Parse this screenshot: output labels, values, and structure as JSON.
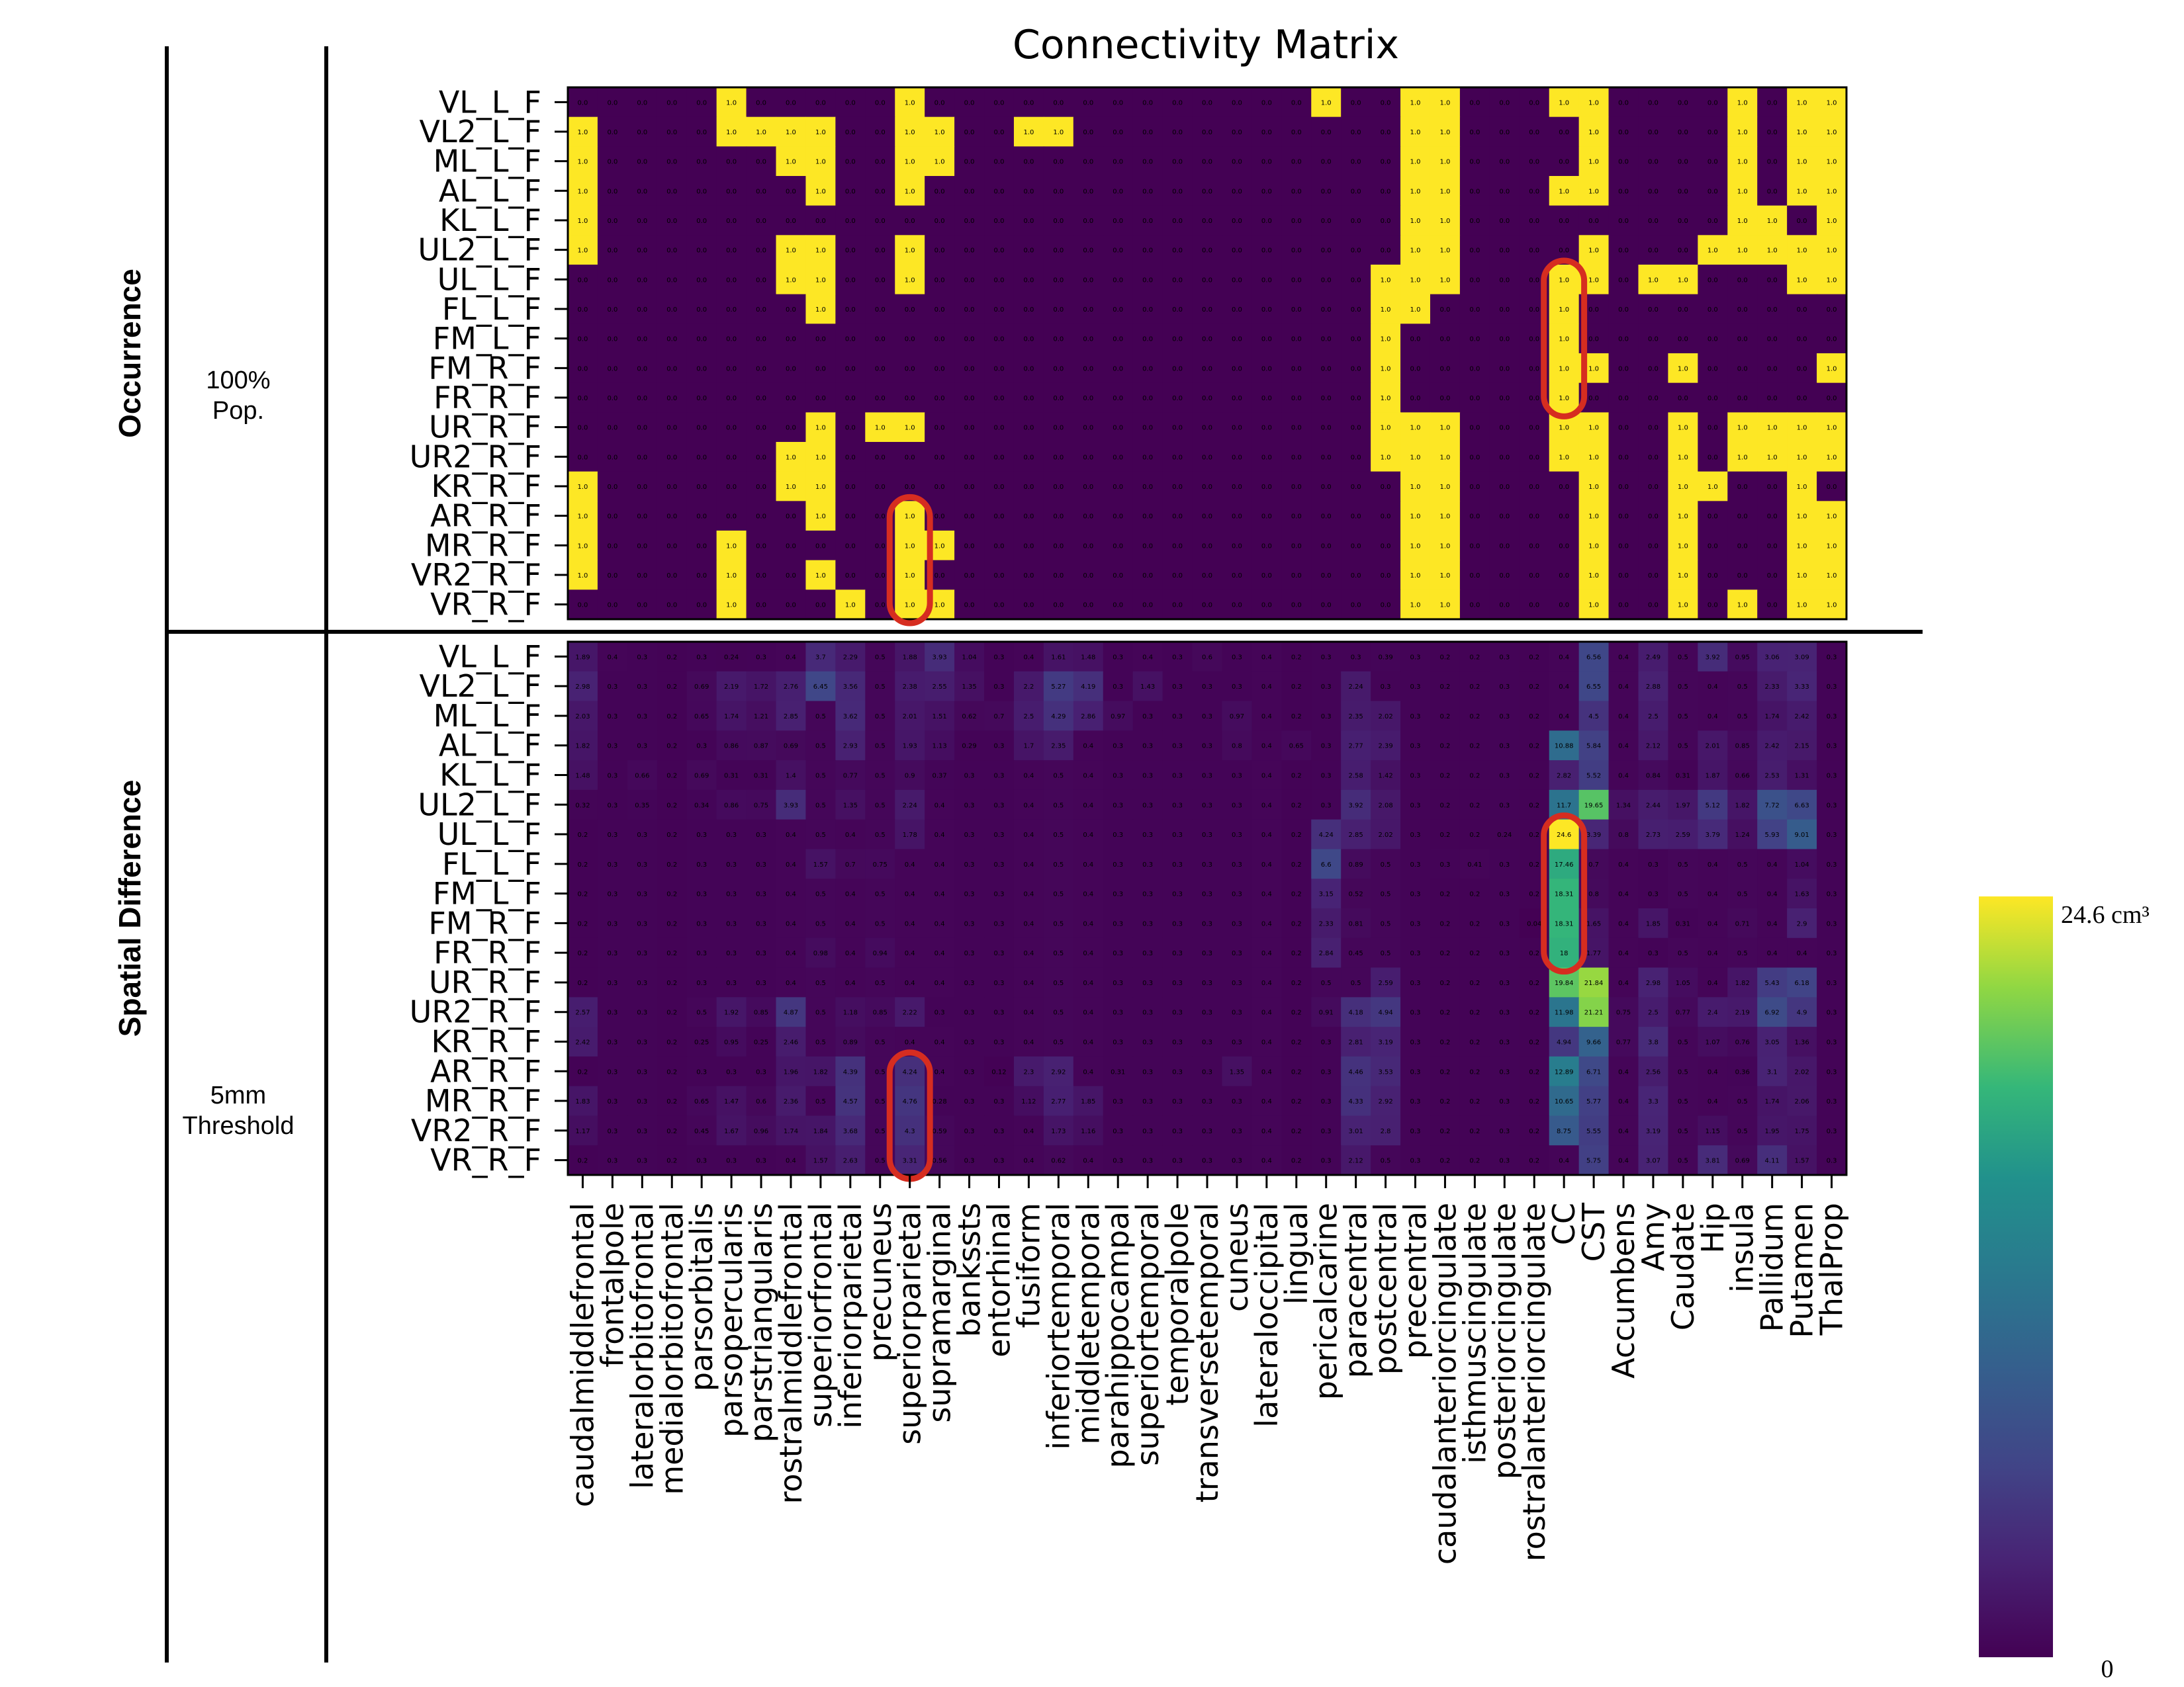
{
  "colors": {
    "viridis_low": "#440154",
    "viridis_high": "#fde725",
    "highlight": "#d62d20",
    "divider": "#000000"
  },
  "chart_data": {
    "type": "heatmap",
    "title": "Connectivity Matrix",
    "rows": [
      "VL_L_F",
      "VL2_L_F",
      "ML_L_F",
      "AL_L_F",
      "KL_L_F",
      "UL2_L_F",
      "UL_L_F",
      "FL_L_F",
      "FM_L_F",
      "FM_R_F",
      "FR_R_F",
      "UR_R_F",
      "UR2_R_F",
      "KR_R_F",
      "AR_R_F",
      "MR_R_F",
      "VR2_R_F",
      "VR_R_F"
    ],
    "columns": [
      "caudalmiddlefrontal",
      "frontalpole",
      "lateralorbitofrontal",
      "medialorbitofrontal",
      "parsorbitalis",
      "parsopercularis",
      "parstriangularis",
      "rostralmiddlefrontal",
      "superiorfrontal",
      "inferiorparietal",
      "precuneus",
      "superiorparietal",
      "supramarginal",
      "bankssts",
      "entorhinal",
      "fusiform",
      "inferiortemporal",
      "middletemporal",
      "parahippocampal",
      "superiortemporal",
      "temporalpole",
      "transversetemporal",
      "cuneus",
      "lateraloccipital",
      "lingual",
      "pericalcarine",
      "paracentral",
      "postcentral",
      "precentral",
      "caudalanteriorcingulate",
      "isthmuscingulate",
      "posteriorcingulate",
      "rostralanteriorcingulate",
      "CC",
      "CST",
      "Accumbens",
      "Amy",
      "Caudate",
      "Hip",
      "insula",
      "Pallidum",
      "Putamen",
      "ThalProp"
    ],
    "panels": [
      {
        "name": "Occurrence",
        "sublabel": [
          "100%",
          "Pop."
        ],
        "scale": "binary",
        "cell_text_on": "1.0",
        "cell_text_off": "0.0",
        "active": [
          [
            5,
            11,
            25,
            28,
            29,
            33,
            34,
            39,
            41,
            42
          ],
          [
            0,
            5,
            6,
            7,
            8,
            11,
            12,
            15,
            16,
            28,
            29,
            34,
            39,
            41,
            42
          ],
          [
            0,
            7,
            8,
            11,
            12,
            28,
            29,
            34,
            39,
            41,
            42
          ],
          [
            0,
            8,
            11,
            28,
            29,
            33,
            34,
            39,
            41,
            42
          ],
          [
            0,
            28,
            29,
            39,
            40,
            42
          ],
          [
            0,
            7,
            8,
            11,
            28,
            29,
            34,
            38,
            39,
            40,
            41,
            42
          ],
          [
            7,
            8,
            11,
            27,
            28,
            29,
            33,
            34,
            36,
            37,
            41,
            42
          ],
          [
            8,
            27,
            28,
            33
          ],
          [
            27,
            33
          ],
          [
            27,
            33,
            34,
            37,
            42
          ],
          [
            27,
            33
          ],
          [
            8,
            10,
            11,
            27,
            28,
            29,
            33,
            34,
            37,
            39,
            40,
            41,
            42
          ],
          [
            7,
            8,
            27,
            28,
            29,
            33,
            34,
            37,
            39,
            40,
            41,
            42
          ],
          [
            0,
            7,
            8,
            28,
            29,
            34,
            37,
            38,
            41
          ],
          [
            0,
            8,
            11,
            28,
            29,
            34,
            37,
            41,
            42
          ],
          [
            0,
            5,
            11,
            12,
            28,
            29,
            34,
            37,
            41,
            42
          ],
          [
            0,
            5,
            8,
            11,
            28,
            29,
            34,
            37,
            41,
            42
          ],
          [
            5,
            9,
            11,
            12,
            28,
            29,
            34,
            37,
            39,
            41,
            42
          ]
        ],
        "highlights": [
          {
            "column": "CC",
            "rows": [
              "UL_L_F",
              "FR_R_F"
            ]
          },
          {
            "column": "superiorparietal",
            "rows": [
              "AR_R_F",
              "VR_R_F"
            ]
          }
        ]
      },
      {
        "name": "Spatial Difference",
        "sublabel": [
          "5mm",
          "Threshold"
        ],
        "scale": "continuous",
        "unit": "cm³",
        "vmin": 0,
        "vmax": 24.6,
        "values": [
          [
            1.89,
            0.4,
            0.3,
            0.2,
            0.3,
            0.24,
            0.3,
            0.4,
            3.7,
            2.29,
            0.5,
            1.88,
            3.93,
            1.04,
            0.3,
            0.4,
            1.61,
            1.48,
            0.3,
            0.4,
            0.3,
            0.6,
            0.3,
            0.4,
            0.2,
            0.3,
            0.3,
            0.39,
            0.3,
            0.2,
            0.2,
            0.3,
            0.2,
            0.4,
            6.56,
            0.4,
            2.49,
            0.5,
            3.92,
            0.95,
            3.06,
            3.09,
            0.3
          ],
          [
            2.98,
            0.3,
            0.3,
            0.2,
            0.69,
            2.19,
            1.72,
            2.76,
            6.45,
            3.56,
            0.5,
            2.38,
            2.55,
            1.35,
            0.3,
            2.2,
            5.27,
            4.19,
            0.3,
            1.43,
            0.3,
            0.3,
            0.3,
            0.4,
            0.2,
            0.3,
            2.24,
            0.3,
            0.3,
            0.2,
            0.2,
            0.3,
            0.2,
            0.4,
            6.55,
            0.4,
            2.88,
            0.5,
            0.4,
            0.5,
            2.33,
            3.33,
            0.3
          ],
          [
            2.03,
            0.3,
            0.3,
            0.2,
            0.65,
            1.74,
            1.21,
            2.85,
            0.5,
            3.62,
            0.5,
            2.01,
            1.51,
            0.62,
            0.7,
            2.5,
            4.29,
            2.86,
            0.97,
            0.3,
            0.3,
            0.3,
            0.97,
            0.4,
            0.2,
            0.3,
            2.35,
            2.02,
            0.3,
            0.2,
            0.2,
            0.3,
            0.2,
            0.4,
            4.5,
            0.4,
            2.5,
            0.5,
            0.4,
            0.5,
            1.74,
            2.42,
            0.3
          ],
          [
            1.82,
            0.3,
            0.3,
            0.2,
            0.3,
            0.86,
            0.87,
            0.69,
            0.5,
            2.93,
            0.5,
            1.93,
            1.13,
            0.29,
            0.3,
            1.7,
            2.35,
            0.4,
            0.3,
            0.3,
            0.3,
            0.3,
            0.8,
            0.4,
            0.65,
            0.3,
            2.77,
            2.39,
            0.3,
            0.2,
            0.2,
            0.3,
            0.2,
            10.88,
            5.84,
            0.4,
            2.12,
            0.5,
            2.01,
            0.85,
            2.42,
            2.15,
            0.3
          ],
          [
            1.48,
            0.3,
            0.66,
            0.2,
            0.69,
            0.31,
            0.31,
            1.4,
            0.5,
            0.77,
            0.5,
            0.9,
            0.37,
            0.3,
            0.3,
            0.4,
            0.5,
            0.4,
            0.3,
            0.3,
            0.3,
            0.3,
            0.3,
            0.4,
            0.2,
            0.3,
            2.58,
            1.42,
            0.3,
            0.2,
            0.2,
            0.3,
            0.2,
            2.82,
            5.52,
            0.4,
            0.84,
            0.31,
            1.87,
            0.66,
            2.53,
            1.31,
            0.3
          ],
          [
            0.32,
            0.3,
            0.35,
            0.2,
            0.34,
            0.86,
            0.75,
            3.93,
            0.5,
            1.35,
            0.5,
            2.24,
            0.4,
            0.3,
            0.3,
            0.4,
            0.5,
            0.4,
            0.3,
            0.3,
            0.3,
            0.3,
            0.3,
            0.4,
            0.2,
            0.3,
            3.92,
            2.08,
            0.3,
            0.2,
            0.2,
            0.3,
            0.2,
            11.7,
            19.65,
            1.34,
            2.44,
            1.97,
            5.12,
            1.82,
            7.72,
            6.63,
            0.3
          ],
          [
            0.2,
            0.3,
            0.3,
            0.2,
            0.3,
            0.3,
            0.3,
            0.4,
            0.5,
            0.4,
            0.5,
            1.78,
            0.4,
            0.3,
            0.3,
            0.4,
            0.5,
            0.4,
            0.3,
            0.3,
            0.3,
            0.3,
            0.3,
            0.4,
            0.2,
            4.24,
            2.85,
            2.02,
            0.3,
            0.2,
            0.2,
            0.24,
            0.2,
            24.6,
            3.39,
            0.8,
            2.73,
            2.59,
            3.79,
            1.24,
            5.93,
            9.01,
            0.3
          ],
          [
            0.2,
            0.3,
            0.3,
            0.2,
            0.3,
            0.3,
            0.3,
            0.4,
            1.57,
            0.7,
            0.75,
            0.4,
            0.4,
            0.3,
            0.3,
            0.4,
            0.5,
            0.4,
            0.3,
            0.3,
            0.3,
            0.3,
            0.3,
            0.4,
            0.2,
            6.6,
            0.89,
            0.5,
            0.3,
            0.3,
            0.41,
            0.3,
            0.2,
            17.46,
            0.7,
            0.4,
            0.3,
            0.5,
            0.4,
            0.5,
            0.4,
            1.04,
            0.3
          ],
          [
            0.2,
            0.3,
            0.3,
            0.2,
            0.3,
            0.3,
            0.3,
            0.4,
            0.5,
            0.4,
            0.5,
            0.4,
            0.4,
            0.3,
            0.3,
            0.4,
            0.5,
            0.4,
            0.3,
            0.3,
            0.3,
            0.3,
            0.3,
            0.4,
            0.2,
            3.15,
            0.52,
            0.5,
            0.3,
            0.2,
            0.2,
            0.3,
            0.2,
            18.31,
            0.8,
            0.4,
            0.3,
            0.5,
            0.4,
            0.5,
            0.4,
            1.63,
            0.3
          ],
          [
            0.2,
            0.3,
            0.3,
            0.2,
            0.3,
            0.3,
            0.3,
            0.4,
            0.5,
            0.4,
            0.5,
            0.4,
            0.4,
            0.3,
            0.3,
            0.4,
            0.5,
            0.4,
            0.3,
            0.3,
            0.3,
            0.3,
            0.3,
            0.4,
            0.2,
            2.33,
            0.81,
            0.5,
            0.3,
            0.2,
            0.2,
            0.3,
            0.04,
            18.31,
            1.65,
            0.4,
            1.85,
            0.31,
            0.4,
            0.71,
            0.4,
            2.9,
            0.3
          ],
          [
            0.2,
            0.3,
            0.3,
            0.2,
            0.3,
            0.3,
            0.3,
            0.4,
            0.98,
            0.4,
            0.94,
            0.4,
            0.4,
            0.3,
            0.3,
            0.4,
            0.5,
            0.4,
            0.3,
            0.3,
            0.3,
            0.3,
            0.3,
            0.4,
            0.2,
            2.84,
            0.45,
            0.5,
            0.3,
            0.2,
            0.2,
            0.3,
            0.2,
            18.0,
            1.77,
            0.4,
            0.3,
            0.5,
            0.4,
            0.5,
            0.4,
            0.4,
            0.3
          ],
          [
            0.2,
            0.3,
            0.3,
            0.2,
            0.3,
            0.3,
            0.3,
            0.4,
            0.5,
            0.4,
            0.5,
            0.4,
            0.4,
            0.3,
            0.3,
            0.4,
            0.5,
            0.4,
            0.3,
            0.3,
            0.3,
            0.3,
            0.3,
            0.4,
            0.2,
            0.5,
            0.5,
            2.59,
            0.3,
            0.2,
            0.2,
            0.3,
            0.2,
            19.84,
            21.84,
            0.4,
            2.98,
            1.05,
            0.4,
            1.82,
            5.43,
            6.18,
            0.3
          ],
          [
            2.57,
            0.3,
            0.3,
            0.2,
            0.5,
            1.92,
            0.85,
            4.87,
            0.5,
            1.18,
            0.85,
            2.22,
            0.3,
            0.3,
            0.3,
            0.4,
            0.5,
            0.4,
            0.3,
            0.3,
            0.3,
            0.3,
            0.3,
            0.4,
            0.2,
            0.91,
            4.18,
            4.94,
            0.3,
            0.2,
            0.2,
            0.3,
            0.2,
            11.98,
            21.21,
            0.75,
            2.5,
            0.77,
            2.4,
            2.19,
            6.92,
            4.9,
            0.3
          ],
          [
            2.42,
            0.3,
            0.3,
            0.2,
            0.25,
            0.95,
            0.25,
            2.46,
            0.5,
            0.89,
            0.5,
            0.4,
            0.4,
            0.3,
            0.3,
            0.4,
            0.5,
            0.4,
            0.3,
            0.3,
            0.3,
            0.3,
            0.3,
            0.4,
            0.2,
            0.3,
            2.81,
            3.19,
            0.3,
            0.2,
            0.2,
            0.3,
            0.2,
            4.94,
            9.66,
            0.77,
            3.8,
            0.5,
            1.07,
            0.76,
            3.05,
            1.36,
            0.3
          ],
          [
            0.2,
            0.3,
            0.3,
            0.2,
            0.3,
            0.3,
            0.3,
            1.96,
            1.82,
            4.39,
            0.5,
            4.24,
            0.4,
            0.3,
            0.12,
            2.3,
            2.92,
            0.4,
            0.31,
            0.3,
            0.3,
            0.3,
            1.35,
            0.4,
            0.2,
            0.3,
            4.46,
            3.53,
            0.3,
            0.2,
            0.2,
            0.3,
            0.2,
            12.89,
            6.71,
            0.4,
            2.56,
            0.5,
            0.4,
            0.36,
            3.1,
            2.02,
            0.3
          ],
          [
            1.83,
            0.3,
            0.3,
            0.2,
            0.65,
            1.47,
            0.6,
            2.36,
            0.5,
            4.57,
            0.5,
            4.76,
            0.28,
            0.3,
            0.3,
            1.12,
            2.77,
            1.85,
            0.3,
            0.3,
            0.3,
            0.3,
            0.3,
            0.4,
            0.2,
            0.3,
            4.33,
            2.92,
            0.3,
            0.2,
            0.2,
            0.3,
            0.2,
            10.65,
            5.77,
            0.4,
            3.3,
            0.5,
            0.4,
            0.5,
            1.74,
            2.06,
            0.3
          ],
          [
            1.17,
            0.3,
            0.3,
            0.2,
            0.45,
            1.67,
            0.96,
            1.74,
            1.84,
            3.68,
            0.5,
            4.3,
            0.59,
            0.3,
            0.3,
            0.4,
            1.73,
            1.16,
            0.3,
            0.3,
            0.3,
            0.3,
            0.3,
            0.4,
            0.2,
            0.3,
            3.01,
            2.8,
            0.3,
            0.2,
            0.2,
            0.3,
            0.2,
            8.75,
            5.55,
            0.4,
            3.19,
            0.5,
            1.15,
            0.5,
            1.95,
            1.75,
            0.3
          ],
          [
            0.2,
            0.3,
            0.3,
            0.2,
            0.3,
            0.3,
            0.3,
            0.4,
            1.57,
            2.63,
            0.5,
            3.31,
            0.56,
            0.3,
            0.3,
            0.4,
            0.62,
            0.4,
            0.3,
            0.3,
            0.3,
            0.3,
            0.3,
            0.4,
            0.2,
            0.3,
            2.12,
            0.5,
            0.3,
            0.2,
            0.2,
            0.3,
            0.2,
            0.4,
            5.75,
            0.4,
            3.07,
            0.5,
            3.81,
            0.69,
            4.11,
            1.57,
            0.3
          ]
        ],
        "highlights": [
          {
            "column": "CC",
            "rows": [
              "UL_L_F",
              "FR_R_F"
            ]
          },
          {
            "column": "superiorparietal",
            "rows": [
              "AR_R_F",
              "VR_R_F"
            ]
          }
        ]
      }
    ],
    "colorbar": {
      "colormap": "viridis",
      "max_label": "24.6 cm³",
      "min_label": "0"
    }
  }
}
